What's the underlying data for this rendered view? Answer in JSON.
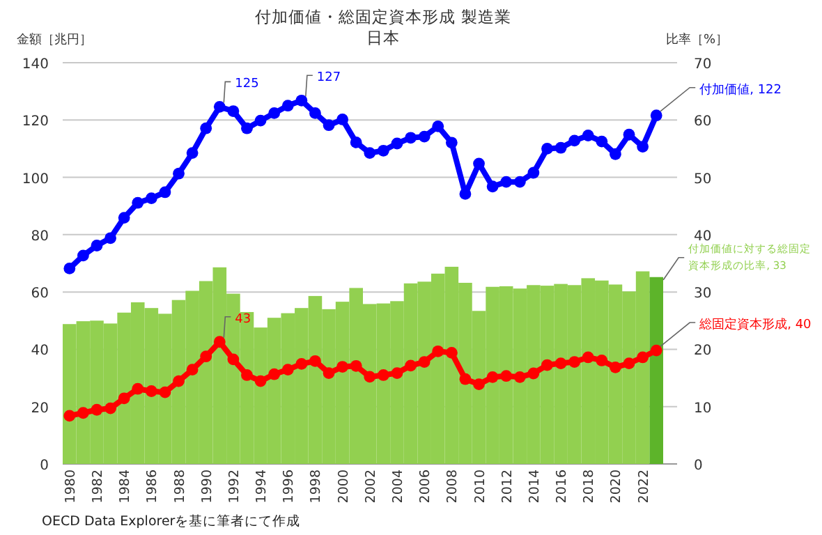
{
  "chart_data": {
    "type": "line",
    "title": "付加価値・総固定資本形成 製造業",
    "subtitle": "日本",
    "ylabel": "金額［兆円］",
    "y2label": "比率［%］",
    "categories": [
      "1980",
      null,
      "1982",
      null,
      "1984",
      null,
      "1986",
      null,
      "1988",
      null,
      "1990",
      null,
      "1992",
      null,
      "1994",
      null,
      "1996",
      null,
      "1998",
      null,
      "2000",
      null,
      "2002",
      null,
      "2004",
      null,
      "2006",
      null,
      "2008",
      null,
      "2010",
      null,
      "2012",
      null,
      "2014",
      null,
      "2016",
      null,
      "2018",
      null,
      "2020",
      null,
      "2022",
      null
    ],
    "ylim": [
      0,
      140
    ],
    "yticks": [
      0,
      20,
      40,
      60,
      80,
      100,
      120,
      140
    ],
    "y2lim": [
      0,
      70
    ],
    "y2ticks": [
      0,
      10,
      20,
      30,
      40,
      50,
      60,
      70
    ],
    "grid": "y",
    "marker": "circle",
    "annotations": [
      "OECD Data Explorerを基に筆者にて作成"
    ],
    "series": [
      {
        "type": "bar",
        "axis": "y2",
        "color": "#92d050",
        "colors": [
          "#92d050",
          "#92d050",
          "#92d050",
          "#92d050",
          "#92d050",
          "#92d050",
          "#92d050",
          "#92d050",
          "#92d050",
          "#92d050",
          "#92d050",
          "#92d050",
          "#92d050",
          "#92d050",
          "#92d050",
          "#92d050",
          "#92d050",
          "#92d050",
          "#92d050",
          "#92d050",
          "#92d050",
          "#92d050",
          "#92d050",
          "#92d050",
          "#92d050",
          "#92d050",
          "#92d050",
          "#92d050",
          "#92d050",
          "#92d050",
          "#92d050",
          "#92d050",
          "#92d050",
          "#92d050",
          "#92d050",
          "#92d050",
          "#92d050",
          "#92d050",
          "#92d050",
          "#92d050",
          "#92d050",
          "#92d050",
          "#92d050",
          "#5db42a"
        ],
        "values": [
          24.4,
          24.9,
          25.0,
          24.5,
          26.4,
          28.2,
          27.2,
          26.2,
          28.6,
          30.2,
          31.9,
          34.3,
          29.7,
          26.5,
          23.8,
          25.5,
          26.3,
          27.2,
          29.3,
          27.0,
          28.3,
          30.7,
          27.9,
          28.0,
          28.4,
          31.5,
          31.8,
          33.2,
          34.4,
          31.6,
          26.7,
          30.9,
          31.0,
          30.6,
          31.2,
          31.1,
          31.4,
          31.2,
          32.4,
          32.0,
          31.3,
          30.1,
          33.6,
          32.6
        ],
        "value_labels": [
          null,
          null,
          null,
          null,
          null,
          null,
          null,
          null,
          null,
          null,
          null,
          null,
          null,
          null,
          null,
          null,
          null,
          null,
          null,
          null,
          null,
          null,
          null,
          null,
          null,
          null,
          null,
          null,
          null,
          null,
          null,
          null,
          null,
          null,
          null,
          null,
          null,
          null,
          null,
          null,
          null,
          null,
          null,
          "付加価値に対する総固定資本形成の比率, 33"
        ]
      },
      {
        "color": "#0000ff",
        "values": [
          68.2,
          72.7,
          76.2,
          78.8,
          85.9,
          91.1,
          92.7,
          94.8,
          101.3,
          108.5,
          117.1,
          124.6,
          123.1,
          117.1,
          119.8,
          122.4,
          125.0,
          126.8,
          122.4,
          118.2,
          120.2,
          112.2,
          108.5,
          109.3,
          111.8,
          113.8,
          114.2,
          117.8,
          112.1,
          94.2,
          104.8,
          96.8,
          98.4,
          98.4,
          101.6,
          110.0,
          110.3,
          112.8,
          114.6,
          112.5,
          108.1,
          114.9,
          110.7,
          121.6
        ],
        "value_labels": [
          null,
          null,
          null,
          null,
          null,
          null,
          null,
          null,
          null,
          null,
          null,
          "125",
          null,
          null,
          null,
          null,
          null,
          "127",
          null,
          null,
          null,
          null,
          null,
          null,
          null,
          null,
          null,
          null,
          null,
          null,
          null,
          null,
          null,
          null,
          null,
          null,
          null,
          null,
          null,
          null,
          null,
          null,
          null,
          "付加価値, 122"
        ]
      },
      {
        "color": "#ff0000",
        "values": [
          16.8,
          17.8,
          18.9,
          19.4,
          22.9,
          26.2,
          25.4,
          25.0,
          28.9,
          32.9,
          37.5,
          42.6,
          36.5,
          31.0,
          28.9,
          31.3,
          32.9,
          34.9,
          35.9,
          31.7,
          33.9,
          34.2,
          30.4,
          31.0,
          31.7,
          34.3,
          35.6,
          39.3,
          38.8,
          29.6,
          27.8,
          30.3,
          30.7,
          30.3,
          31.6,
          34.5,
          35.1,
          35.6,
          37.2,
          36.1,
          33.7,
          35.1,
          37.2,
          39.6
        ],
        "value_labels": [
          null,
          null,
          null,
          null,
          null,
          null,
          null,
          null,
          null,
          null,
          null,
          "43",
          null,
          null,
          null,
          null,
          null,
          null,
          null,
          null,
          null,
          null,
          null,
          null,
          null,
          null,
          null,
          null,
          null,
          null,
          null,
          null,
          null,
          null,
          null,
          null,
          null,
          null,
          null,
          null,
          null,
          null,
          null,
          "総固定資本形成, 40"
        ]
      }
    ]
  }
}
